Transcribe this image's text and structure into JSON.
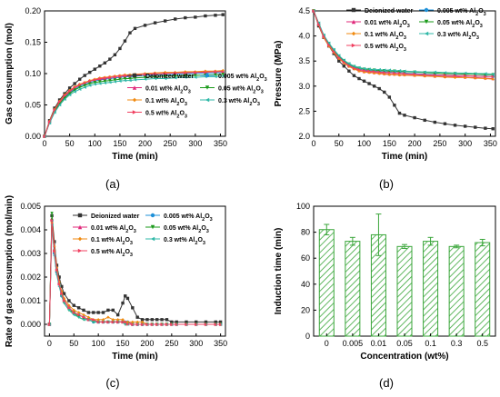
{
  "colors": {
    "Deionized water": "#333333",
    "0.005 wt% Al2O3": "#1e90d8",
    "0.01 wt% Al2O3": "#e0287a",
    "0.05 wt% Al2O3": "#1a9a1a",
    "0.1 wt% Al2O3": "#f08a10",
    "0.3 wt% Al2O3": "#30b8a8",
    "0.5 wt% Al2O3": "#f04060",
    "bar": "#3aa63a"
  },
  "chart_data": [
    {
      "panel_label": "(a)",
      "type": "line",
      "xlabel": "Time (min)",
      "ylabel": "Gas consumption (mol)",
      "xlim": [
        0,
        360
      ],
      "ylim": [
        0,
        0.2
      ],
      "xticks": [
        "0",
        "50",
        "100",
        "150",
        "200",
        "250",
        "300",
        "350"
      ],
      "yticks": [
        "0.00",
        "0.05",
        "0.10",
        "0.15",
        "0.20"
      ],
      "legend": {
        "position": "center-right",
        "columns": 2
      },
      "x": [
        0,
        10,
        20,
        30,
        40,
        50,
        60,
        70,
        80,
        90,
        100,
        110,
        120,
        130,
        140,
        150,
        160,
        170,
        180,
        200,
        220,
        240,
        260,
        280,
        300,
        320,
        340,
        355
      ],
      "series": [
        {
          "name": "Deionized water",
          "key": "dw",
          "marker": "square",
          "values": [
            0,
            0.025,
            0.045,
            0.058,
            0.068,
            0.077,
            0.084,
            0.091,
            0.097,
            0.102,
            0.107,
            0.112,
            0.117,
            0.123,
            0.13,
            0.14,
            0.152,
            0.165,
            0.172,
            0.177,
            0.181,
            0.184,
            0.187,
            0.189,
            0.19,
            0.192,
            0.193,
            0.194
          ]
        },
        {
          "name": "0.005 wt% Al2O3",
          "key": "a005",
          "marker": "circle",
          "values": [
            0,
            0.022,
            0.04,
            0.052,
            0.062,
            0.07,
            0.075,
            0.08,
            0.083,
            0.086,
            0.088,
            0.09,
            0.091,
            0.092,
            0.093,
            0.094,
            0.095,
            0.095,
            0.096,
            0.097,
            0.098,
            0.098,
            0.099,
            0.1,
            0.1,
            0.101,
            0.101,
            0.102
          ]
        },
        {
          "name": "0.01 wt% Al2O3",
          "key": "a01",
          "marker": "triangle",
          "values": [
            0,
            0.023,
            0.041,
            0.054,
            0.064,
            0.071,
            0.077,
            0.082,
            0.085,
            0.088,
            0.09,
            0.091,
            0.092,
            0.094,
            0.095,
            0.096,
            0.096,
            0.097,
            0.098,
            0.099,
            0.1,
            0.101,
            0.101,
            0.102,
            0.102,
            0.103,
            0.103,
            0.104
          ]
        },
        {
          "name": "0.05 wt% Al2O3",
          "key": "a05",
          "marker": "triangle-down",
          "values": [
            0,
            0.022,
            0.04,
            0.052,
            0.061,
            0.068,
            0.074,
            0.078,
            0.081,
            0.084,
            0.086,
            0.087,
            0.088,
            0.089,
            0.09,
            0.091,
            0.092,
            0.092,
            0.093,
            0.094,
            0.095,
            0.096,
            0.096,
            0.097,
            0.097,
            0.098,
            0.098,
            0.099
          ]
        },
        {
          "name": "0.1 wt% Al2O3",
          "key": "a1",
          "marker": "diamond",
          "values": [
            0,
            0.024,
            0.043,
            0.056,
            0.066,
            0.073,
            0.079,
            0.083,
            0.086,
            0.089,
            0.091,
            0.093,
            0.094,
            0.095,
            0.096,
            0.097,
            0.098,
            0.098,
            0.099,
            0.1,
            0.101,
            0.102,
            0.102,
            0.103,
            0.103,
            0.104,
            0.104,
            0.105
          ]
        },
        {
          "name": "0.3 wt% Al2O3",
          "key": "a3",
          "marker": "triangle-left",
          "values": [
            0,
            0.021,
            0.038,
            0.05,
            0.059,
            0.066,
            0.071,
            0.075,
            0.078,
            0.081,
            0.083,
            0.084,
            0.085,
            0.086,
            0.087,
            0.088,
            0.089,
            0.089,
            0.09,
            0.091,
            0.092,
            0.092,
            0.093,
            0.094,
            0.094,
            0.095,
            0.095,
            0.096
          ]
        },
        {
          "name": "0.5 wt% Al2O3",
          "key": "a5",
          "marker": "triangle-right",
          "values": [
            0,
            0.023,
            0.042,
            0.055,
            0.065,
            0.072,
            0.078,
            0.082,
            0.085,
            0.088,
            0.09,
            0.092,
            0.093,
            0.094,
            0.095,
            0.096,
            0.097,
            0.097,
            0.098,
            0.099,
            0.1,
            0.1,
            0.101,
            0.101,
            0.102,
            0.102,
            0.103,
            0.103
          ]
        }
      ]
    },
    {
      "panel_label": "(b)",
      "type": "line",
      "xlabel": "Time (min)",
      "ylabel": "Pressure (MPa)",
      "xlim": [
        0,
        360
      ],
      "ylim": [
        2.0,
        4.5
      ],
      "xticks": [
        "0",
        "50",
        "100",
        "150",
        "200",
        "250",
        "300",
        "350"
      ],
      "yticks": [
        "2.0",
        "2.5",
        "3.0",
        "3.5",
        "4.0",
        "4.5"
      ],
      "legend": {
        "position": "top-right",
        "columns": 2
      },
      "x": [
        0,
        10,
        20,
        30,
        40,
        50,
        60,
        70,
        80,
        90,
        100,
        110,
        120,
        130,
        140,
        150,
        160,
        170,
        180,
        200,
        220,
        240,
        260,
        280,
        300,
        320,
        340,
        355
      ],
      "series": [
        {
          "name": "Deionized water",
          "key": "dw",
          "marker": "square",
          "values": [
            4.5,
            4.2,
            3.97,
            3.8,
            3.65,
            3.5,
            3.4,
            3.3,
            3.21,
            3.15,
            3.1,
            3.05,
            3.0,
            2.95,
            2.88,
            2.78,
            2.62,
            2.46,
            2.42,
            2.37,
            2.32,
            2.28,
            2.25,
            2.22,
            2.2,
            2.18,
            2.16,
            2.15
          ]
        },
        {
          "name": "0.005 wt% Al2O3",
          "key": "a005",
          "marker": "circle",
          "values": [
            4.5,
            4.24,
            4.0,
            3.83,
            3.7,
            3.58,
            3.49,
            3.42,
            3.37,
            3.34,
            3.32,
            3.31,
            3.3,
            3.29,
            3.28,
            3.28,
            3.27,
            3.27,
            3.26,
            3.25,
            3.24,
            3.23,
            3.22,
            3.22,
            3.21,
            3.2,
            3.2,
            3.19
          ]
        },
        {
          "name": "0.01 wt% Al2O3",
          "key": "a01",
          "marker": "triangle",
          "values": [
            4.5,
            4.23,
            3.98,
            3.81,
            3.68,
            3.56,
            3.47,
            3.4,
            3.35,
            3.31,
            3.29,
            3.28,
            3.27,
            3.26,
            3.25,
            3.24,
            3.24,
            3.23,
            3.23,
            3.22,
            3.21,
            3.2,
            3.19,
            3.19,
            3.18,
            3.17,
            3.16,
            3.15
          ]
        },
        {
          "name": "0.05 wt% Al2O3",
          "key": "a05",
          "marker": "triangle-down",
          "values": [
            4.5,
            4.25,
            4.01,
            3.85,
            3.72,
            3.6,
            3.51,
            3.44,
            3.39,
            3.36,
            3.34,
            3.33,
            3.32,
            3.31,
            3.31,
            3.3,
            3.3,
            3.29,
            3.29,
            3.28,
            3.27,
            3.26,
            3.25,
            3.25,
            3.24,
            3.24,
            3.23,
            3.23
          ]
        },
        {
          "name": "0.1 wt% Al2O3",
          "key": "a1",
          "marker": "diamond",
          "values": [
            4.5,
            4.22,
            3.97,
            3.8,
            3.67,
            3.55,
            3.46,
            3.39,
            3.34,
            3.3,
            3.28,
            3.27,
            3.26,
            3.25,
            3.24,
            3.23,
            3.23,
            3.22,
            3.22,
            3.21,
            3.2,
            3.19,
            3.18,
            3.17,
            3.17,
            3.16,
            3.15,
            3.14
          ]
        },
        {
          "name": "0.3 wt% Al2O3",
          "key": "a3",
          "marker": "triangle-left",
          "values": [
            4.5,
            4.26,
            4.02,
            3.86,
            3.73,
            3.61,
            3.52,
            3.45,
            3.4,
            3.37,
            3.35,
            3.34,
            3.33,
            3.33,
            3.32,
            3.32,
            3.31,
            3.31,
            3.3,
            3.29,
            3.28,
            3.28,
            3.27,
            3.26,
            3.26,
            3.25,
            3.25,
            3.24
          ]
        },
        {
          "name": "0.5 wt% Al2O3",
          "key": "a5",
          "marker": "triangle-right",
          "values": [
            4.5,
            4.23,
            3.99,
            3.82,
            3.69,
            3.57,
            3.48,
            3.41,
            3.36,
            3.33,
            3.31,
            3.3,
            3.29,
            3.28,
            3.27,
            3.27,
            3.26,
            3.26,
            3.25,
            3.24,
            3.23,
            3.22,
            3.22,
            3.21,
            3.21,
            3.2,
            3.19,
            3.19
          ]
        }
      ]
    },
    {
      "panel_label": "(c)",
      "type": "line",
      "xlabel": "Time (min)",
      "ylabel": "Rate of gas consumption (mol/min)",
      "xlim": [
        -10,
        360
      ],
      "ylim": [
        -0.0005,
        0.005
      ],
      "xticks": [
        "0",
        "50",
        "100",
        "150",
        "200",
        "250",
        "300",
        "350"
      ],
      "yticks": [
        "0.000",
        "0.001",
        "0.002",
        "0.003",
        "0.004",
        "0.005"
      ],
      "legend": {
        "position": "top-right",
        "columns": 2
      },
      "x": [
        0,
        5,
        10,
        15,
        20,
        25,
        30,
        40,
        50,
        60,
        70,
        80,
        90,
        100,
        110,
        120,
        130,
        140,
        150,
        155,
        160,
        170,
        180,
        190,
        200,
        210,
        220,
        230,
        240,
        250,
        260,
        280,
        300,
        320,
        340,
        350
      ],
      "series": [
        {
          "name": "Deionized water",
          "key": "dw",
          "marker": "square",
          "values": [
            0.0,
            0.0046,
            0.0035,
            0.0025,
            0.002,
            0.0016,
            0.0013,
            0.001,
            0.0008,
            0.0007,
            0.0006,
            0.0005,
            0.0005,
            0.0005,
            0.0005,
            0.0006,
            0.0006,
            0.0004,
            0.0009,
            0.0012,
            0.0011,
            0.0007,
            0.0003,
            0.0002,
            0.0002,
            0.0002,
            0.0002,
            0.0002,
            0.0002,
            0.0001,
            0.0001,
            0.0001,
            0.0001,
            0.0001,
            0.0001,
            0.0001
          ]
        },
        {
          "name": "0.005 wt% Al2O3",
          "key": "a005",
          "marker": "circle",
          "values": [
            0.0,
            0.0044,
            0.003,
            0.0022,
            0.0017,
            0.0012,
            0.001,
            0.0007,
            0.0005,
            0.0004,
            0.0003,
            0.0002,
            0.0001,
            0.0001,
            0.0001,
            0.0001,
            0.0001,
            0.0001,
            0.0001,
            0.0001,
            0.0001,
            0.0,
            0.0,
            0.0,
            0.0,
            0.0,
            0.0,
            0.0,
            0.0,
            0.0,
            0.0,
            0.0,
            0.0,
            0.0,
            0.0,
            0.0
          ]
        },
        {
          "name": "0.01 wt% Al2O3",
          "key": "a01",
          "marker": "triangle",
          "values": [
            0.0,
            0.0045,
            0.0032,
            0.0023,
            0.0018,
            0.0013,
            0.001,
            0.0007,
            0.0005,
            0.0004,
            0.0003,
            0.0002,
            0.0002,
            0.0001,
            0.0001,
            0.0001,
            0.0001,
            0.0001,
            0.0001,
            0.0001,
            0.0001,
            0.0,
            0.0,
            0.0,
            0.0,
            0.0,
            0.0,
            0.0,
            0.0,
            0.0,
            0.0,
            0.0,
            0.0,
            0.0,
            0.0,
            0.0
          ]
        },
        {
          "name": "0.05 wt% Al2O3",
          "key": "a05",
          "marker": "triangle-down",
          "values": [
            0.0,
            0.0047,
            0.0031,
            0.0022,
            0.0017,
            0.0012,
            0.0009,
            0.0006,
            0.0005,
            0.0003,
            0.0002,
            0.0002,
            0.0001,
            0.0001,
            0.0001,
            0.0001,
            0.0001,
            0.0001,
            0.0001,
            0.0,
            0.0,
            0.0,
            0.0,
            0.0,
            0.0,
            0.0,
            0.0,
            0.0,
            0.0,
            0.0,
            0.0,
            0.0,
            0.0,
            0.0,
            0.0,
            0.0
          ]
        },
        {
          "name": "0.1 wt% Al2O3",
          "key": "a1",
          "marker": "diamond",
          "values": [
            0.0,
            0.0043,
            0.0033,
            0.0024,
            0.0018,
            0.0014,
            0.0011,
            0.0008,
            0.0006,
            0.0005,
            0.0004,
            0.0003,
            0.0002,
            0.0002,
            0.0002,
            0.0003,
            0.0002,
            0.0002,
            0.0002,
            0.0001,
            0.0001,
            0.0001,
            0.0001,
            0.0001,
            0.0,
            0.0,
            0.0,
            0.0,
            0.0,
            0.0,
            0.0,
            0.0,
            0.0,
            0.0,
            0.0,
            0.0
          ]
        },
        {
          "name": "0.3 wt% Al2O3",
          "key": "a3",
          "marker": "triangle-left",
          "values": [
            0.0,
            0.0042,
            0.0029,
            0.0021,
            0.0016,
            0.0012,
            0.0009,
            0.0006,
            0.0004,
            0.0003,
            0.0002,
            0.0002,
            0.0001,
            0.0001,
            0.0001,
            0.0001,
            0.0001,
            0.0001,
            0.0001,
            0.0,
            0.0,
            0.0,
            0.0,
            0.0,
            0.0,
            0.0,
            0.0,
            0.0,
            0.0,
            0.0,
            0.0,
            0.0,
            0.0,
            0.0,
            0.0,
            0.0
          ]
        },
        {
          "name": "0.5 wt% Al2O3",
          "key": "a5",
          "marker": "triangle-right",
          "values": [
            0.0,
            0.0044,
            0.0031,
            0.0023,
            0.0017,
            0.0013,
            0.001,
            0.0007,
            0.0005,
            0.0004,
            0.0003,
            0.0002,
            0.0002,
            0.0001,
            0.0001,
            0.0001,
            0.0001,
            0.0001,
            0.0001,
            0.0001,
            0.0,
            0.0,
            0.0,
            0.0,
            0.0,
            0.0,
            0.0,
            0.0,
            0.0,
            0.0,
            0.0,
            0.0,
            0.0,
            0.0,
            0.0,
            0.0
          ]
        }
      ]
    },
    {
      "panel_label": "(d)",
      "type": "bar",
      "xlabel": "Concentration (wt%)",
      "ylabel": "Induction time (min)",
      "ylim": [
        0,
        100
      ],
      "yticks": [
        "0",
        "20",
        "40",
        "60",
        "80",
        "100"
      ],
      "categories": [
        "0",
        "0.005",
        "0.01",
        "0.05",
        "0.1",
        "0.3",
        "0.5"
      ],
      "values": [
        82,
        73,
        78,
        69,
        73,
        69,
        72
      ],
      "errors": [
        4,
        3,
        16,
        1.5,
        3,
        1,
        2.5
      ],
      "fill": "hatched"
    }
  ]
}
